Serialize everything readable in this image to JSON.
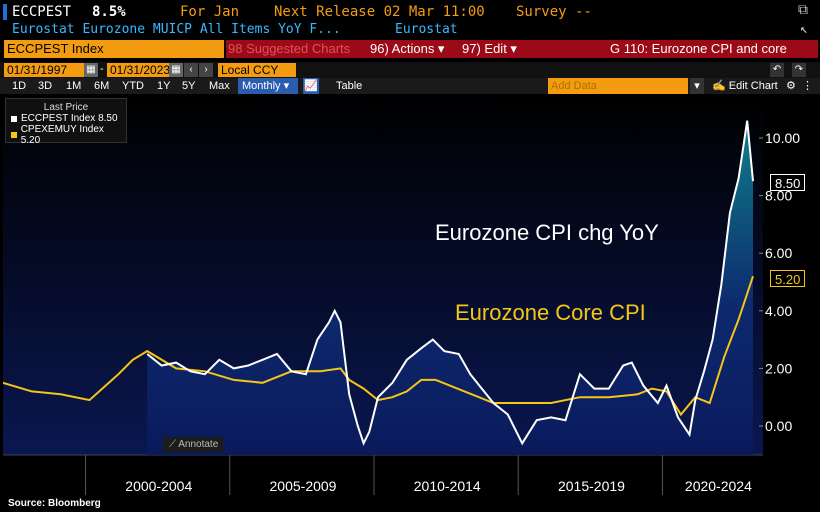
{
  "header": {
    "ticker": "ECCPEST",
    "value": "8.5%",
    "for_label": "For Jan",
    "next_release": "Next Release 02 Mar 11:00",
    "survey": "Survey --",
    "description": "Eurostat Eurozone MUICP All Items YoY F...",
    "source_name": "Eurostat"
  },
  "toolbar": {
    "ticker_box": "ECCPEST Index",
    "suggested": "98 Suggested Charts",
    "actions": "96) Actions ▾",
    "edit": "97) Edit ▾",
    "chart_title": "G 110: Eurozone CPI and core"
  },
  "range": {
    "start": "01/31/1997",
    "end": "01/31/2023",
    "currency": "Local CCY",
    "add_data_placeholder": "Add Data"
  },
  "periods": [
    "1D",
    "3D",
    "1M",
    "6M",
    "YTD",
    "1Y",
    "5Y",
    "Max"
  ],
  "frequency": "Monthly ▾",
  "view": "Table",
  "edit_chart": "✍ Edit Chart",
  "legend": {
    "header": "Last Price",
    "items": [
      {
        "label": "ECCPEST Index  8.50",
        "color": "#ffffff"
      },
      {
        "label": "CPEXEMUY Index 5.20",
        "color": "#f5c518"
      }
    ]
  },
  "annotations": {
    "cpi": "Eurozone CPI chg YoY",
    "core": "Eurozone Core CPI",
    "annotate_button": "⟋ Annotate"
  },
  "last_values": {
    "cpi": "8.50",
    "core": "5.20"
  },
  "source": "Source: Bloomberg",
  "chart_data": {
    "type": "line",
    "x_range": [
      1997.0,
      2023.0
    ],
    "ylim": [
      -1,
      11
    ],
    "y_ticks": [
      "10.00",
      "8.00",
      "6.00",
      "4.00",
      "2.00",
      "0.00"
    ],
    "x_labels": [
      "2000-2004",
      "2005-2009",
      "2010-2014",
      "2015-2019",
      "2020-2024"
    ],
    "series": [
      {
        "name": "ECCPEST Index",
        "color": "#ffffff",
        "x": [
          2002.0,
          2002.5,
          2003.0,
          2003.5,
          2004.0,
          2004.5,
          2005.0,
          2005.5,
          2006.0,
          2006.5,
          2007.0,
          2007.5,
          2007.9,
          2008.3,
          2008.5,
          2008.7,
          2009.0,
          2009.3,
          2009.5,
          2009.7,
          2010.0,
          2010.5,
          2011.0,
          2011.5,
          2011.9,
          2012.3,
          2012.8,
          2013.2,
          2013.6,
          2014.0,
          2014.5,
          2015.0,
          2015.5,
          2016.0,
          2016.5,
          2017.0,
          2017.5,
          2018.0,
          2018.5,
          2018.8,
          2019.2,
          2019.7,
          2020.0,
          2020.4,
          2020.8,
          2021.0,
          2021.3,
          2021.6,
          2021.9,
          2022.2,
          2022.5,
          2022.8,
          2023.0
        ],
        "y": [
          2.5,
          2.1,
          2.2,
          1.9,
          1.8,
          2.3,
          2.0,
          2.1,
          2.3,
          2.5,
          1.9,
          1.8,
          3.0,
          3.6,
          4.0,
          3.6,
          1.1,
          0.0,
          -0.6,
          -0.2,
          1.0,
          1.5,
          2.3,
          2.7,
          3.0,
          2.6,
          2.5,
          1.8,
          1.3,
          0.8,
          0.4,
          -0.6,
          0.2,
          0.3,
          0.2,
          1.8,
          1.3,
          1.3,
          2.1,
          2.2,
          1.4,
          0.8,
          1.4,
          0.3,
          -0.3,
          0.9,
          1.9,
          3.0,
          4.9,
          7.4,
          8.6,
          10.6,
          8.5
        ]
      },
      {
        "name": "CPEXEMUY Index",
        "color": "#f5c518",
        "x": [
          1997.0,
          1998.0,
          1999.0,
          2000.0,
          2001.0,
          2001.5,
          2002.0,
          2003.0,
          2004.0,
          2005.0,
          2006.0,
          2007.0,
          2008.0,
          2008.7,
          2009.0,
          2009.5,
          2010.0,
          2010.5,
          2011.0,
          2011.5,
          2012.0,
          2013.0,
          2013.5,
          2014.0,
          2015.0,
          2016.0,
          2017.0,
          2018.0,
          2019.0,
          2019.5,
          2020.0,
          2020.5,
          2021.0,
          2021.5,
          2022.0,
          2022.5,
          2023.0
        ],
        "y": [
          1.5,
          1.2,
          1.1,
          0.9,
          1.8,
          2.3,
          2.6,
          2.0,
          1.9,
          1.6,
          1.5,
          1.9,
          1.9,
          2.0,
          1.6,
          1.3,
          0.9,
          1.0,
          1.2,
          1.6,
          1.6,
          1.2,
          1.0,
          0.8,
          0.8,
          0.8,
          1.0,
          1.0,
          1.1,
          1.3,
          1.2,
          0.4,
          1.0,
          0.8,
          2.4,
          3.7,
          5.2
        ]
      }
    ]
  }
}
